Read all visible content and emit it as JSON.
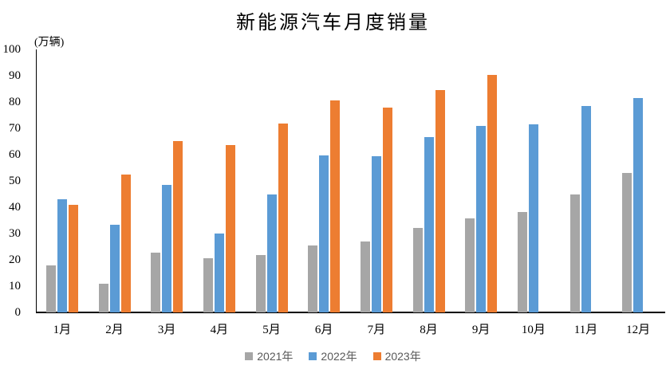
{
  "chart_data": {
    "type": "bar",
    "title": "新能源汽车月度销量",
    "unit_label": "(万辆)",
    "categories": [
      "1月",
      "2月",
      "3月",
      "4月",
      "5月",
      "6月",
      "7月",
      "8月",
      "9月",
      "10月",
      "11月",
      "12月"
    ],
    "series": [
      {
        "name": "2021年",
        "color": "#A6A6A6",
        "values": [
          17.9,
          11.0,
          22.6,
          20.6,
          21.7,
          25.6,
          27.1,
          32.1,
          35.7,
          38.3,
          45.0,
          53.1
        ]
      },
      {
        "name": "2022年",
        "color": "#5B9BD5",
        "values": [
          43.1,
          33.4,
          48.4,
          29.9,
          44.7,
          59.6,
          59.3,
          66.6,
          70.8,
          71.4,
          78.6,
          81.4
        ]
      },
      {
        "name": "2023年",
        "color": "#ED7D31",
        "values": [
          40.8,
          52.5,
          65.3,
          63.6,
          71.7,
          80.6,
          78.0,
          84.6,
          90.4,
          null,
          null,
          null
        ]
      }
    ],
    "ylim": [
      0,
      100
    ],
    "yticks": [
      0,
      10,
      20,
      30,
      40,
      50,
      60,
      70,
      80,
      90,
      100
    ],
    "grid": false,
    "legend_position": "bottom",
    "axis_color": "#000000",
    "label_color": "#000000",
    "legend_text_color": "#595959",
    "background_color": "#ffffff"
  }
}
